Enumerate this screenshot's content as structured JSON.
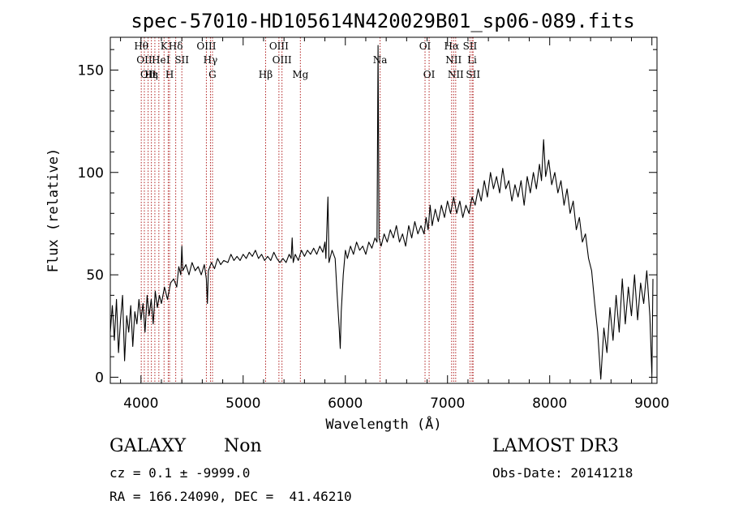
{
  "chart_data": {
    "type": "line",
    "title": "spec-57010-HD105614N420029B01_sp06-089.fits",
    "xlabel": "Wavelength (Å)",
    "ylabel": "Flux (relative)",
    "xlim": [
      3700,
      9050
    ],
    "ylim": [
      -3,
      166
    ],
    "xticks": [
      4000,
      5000,
      6000,
      7000,
      8000,
      9000
    ],
    "yticks": [
      0,
      50,
      100,
      150
    ],
    "grid": false,
    "line_color": "#000000",
    "marker_color": "#b22222",
    "series": [
      {
        "values": [
          [
            3700,
            22
          ],
          [
            3720,
            35
          ],
          [
            3740,
            18
          ],
          [
            3760,
            38
          ],
          [
            3780,
            12
          ],
          [
            3800,
            28
          ],
          [
            3820,
            40
          ],
          [
            3840,
            8
          ],
          [
            3860,
            30
          ],
          [
            3880,
            22
          ],
          [
            3900,
            35
          ],
          [
            3920,
            15
          ],
          [
            3940,
            32
          ],
          [
            3960,
            26
          ],
          [
            3980,
            38
          ],
          [
            4000,
            28
          ],
          [
            4020,
            36
          ],
          [
            4040,
            22
          ],
          [
            4060,
            40
          ],
          [
            4080,
            30
          ],
          [
            4100,
            38
          ],
          [
            4120,
            26
          ],
          [
            4140,
            42
          ],
          [
            4160,
            34
          ],
          [
            4180,
            40
          ],
          [
            4200,
            36
          ],
          [
            4230,
            44
          ],
          [
            4260,
            38
          ],
          [
            4290,
            46
          ],
          [
            4320,
            48
          ],
          [
            4350,
            44
          ],
          [
            4370,
            54
          ],
          [
            4390,
            50
          ],
          [
            4400,
            64
          ],
          [
            4410,
            52
          ],
          [
            4440,
            55
          ],
          [
            4470,
            50
          ],
          [
            4500,
            56
          ],
          [
            4530,
            52
          ],
          [
            4560,
            54
          ],
          [
            4590,
            50
          ],
          [
            4620,
            55
          ],
          [
            4640,
            48
          ],
          [
            4650,
            36
          ],
          [
            4660,
            52
          ],
          [
            4690,
            56
          ],
          [
            4720,
            53
          ],
          [
            4750,
            58
          ],
          [
            4780,
            55
          ],
          [
            4810,
            57
          ],
          [
            4850,
            56
          ],
          [
            4880,
            60
          ],
          [
            4910,
            57
          ],
          [
            4940,
            59
          ],
          [
            4970,
            57
          ],
          [
            5000,
            60
          ],
          [
            5030,
            58
          ],
          [
            5060,
            61
          ],
          [
            5090,
            59
          ],
          [
            5120,
            62
          ],
          [
            5150,
            58
          ],
          [
            5180,
            60
          ],
          [
            5210,
            57
          ],
          [
            5240,
            59
          ],
          [
            5270,
            57
          ],
          [
            5300,
            61
          ],
          [
            5330,
            58
          ],
          [
            5360,
            56
          ],
          [
            5390,
            58
          ],
          [
            5420,
            56
          ],
          [
            5450,
            60
          ],
          [
            5470,
            58
          ],
          [
            5480,
            68
          ],
          [
            5490,
            56
          ],
          [
            5510,
            60
          ],
          [
            5540,
            57
          ],
          [
            5570,
            62
          ],
          [
            5600,
            59
          ],
          [
            5630,
            62
          ],
          [
            5660,
            60
          ],
          [
            5690,
            63
          ],
          [
            5720,
            60
          ],
          [
            5750,
            64
          ],
          [
            5780,
            61
          ],
          [
            5800,
            66
          ],
          [
            5810,
            58
          ],
          [
            5830,
            88
          ],
          [
            5840,
            56
          ],
          [
            5870,
            62
          ],
          [
            5900,
            58
          ],
          [
            5920,
            40
          ],
          [
            5940,
            24
          ],
          [
            5950,
            14
          ],
          [
            5960,
            32
          ],
          [
            5980,
            50
          ],
          [
            6000,
            62
          ],
          [
            6020,
            58
          ],
          [
            6050,
            64
          ],
          [
            6080,
            60
          ],
          [
            6110,
            66
          ],
          [
            6140,
            62
          ],
          [
            6170,
            64
          ],
          [
            6200,
            60
          ],
          [
            6230,
            66
          ],
          [
            6260,
            63
          ],
          [
            6290,
            68
          ],
          [
            6310,
            66
          ],
          [
            6320,
            162
          ],
          [
            6330,
            68
          ],
          [
            6350,
            64
          ],
          [
            6380,
            70
          ],
          [
            6410,
            66
          ],
          [
            6440,
            72
          ],
          [
            6470,
            68
          ],
          [
            6500,
            74
          ],
          [
            6530,
            66
          ],
          [
            6560,
            70
          ],
          [
            6590,
            64
          ],
          [
            6620,
            74
          ],
          [
            6650,
            68
          ],
          [
            6680,
            76
          ],
          [
            6710,
            70
          ],
          [
            6740,
            74
          ],
          [
            6770,
            70
          ],
          [
            6790,
            78
          ],
          [
            6810,
            72
          ],
          [
            6830,
            84
          ],
          [
            6850,
            74
          ],
          [
            6880,
            82
          ],
          [
            6910,
            76
          ],
          [
            6940,
            84
          ],
          [
            6970,
            78
          ],
          [
            7000,
            86
          ],
          [
            7030,
            80
          ],
          [
            7060,
            88
          ],
          [
            7090,
            80
          ],
          [
            7120,
            86
          ],
          [
            7150,
            78
          ],
          [
            7180,
            84
          ],
          [
            7210,
            80
          ],
          [
            7240,
            88
          ],
          [
            7270,
            84
          ],
          [
            7300,
            92
          ],
          [
            7330,
            86
          ],
          [
            7360,
            96
          ],
          [
            7390,
            88
          ],
          [
            7420,
            100
          ],
          [
            7450,
            92
          ],
          [
            7480,
            98
          ],
          [
            7510,
            90
          ],
          [
            7540,
            102
          ],
          [
            7570,
            92
          ],
          [
            7600,
            96
          ],
          [
            7630,
            86
          ],
          [
            7660,
            94
          ],
          [
            7690,
            88
          ],
          [
            7720,
            96
          ],
          [
            7750,
            84
          ],
          [
            7780,
            98
          ],
          [
            7810,
            90
          ],
          [
            7840,
            100
          ],
          [
            7870,
            92
          ],
          [
            7900,
            104
          ],
          [
            7920,
            96
          ],
          [
            7940,
            116
          ],
          [
            7960,
            98
          ],
          [
            7990,
            106
          ],
          [
            8020,
            94
          ],
          [
            8050,
            100
          ],
          [
            8080,
            90
          ],
          [
            8110,
            96
          ],
          [
            8140,
            84
          ],
          [
            8170,
            92
          ],
          [
            8200,
            80
          ],
          [
            8230,
            86
          ],
          [
            8260,
            72
          ],
          [
            8290,
            78
          ],
          [
            8320,
            66
          ],
          [
            8350,
            70
          ],
          [
            8380,
            58
          ],
          [
            8410,
            52
          ],
          [
            8440,
            36
          ],
          [
            8470,
            22
          ],
          [
            8500,
            -1
          ],
          [
            8530,
            24
          ],
          [
            8560,
            12
          ],
          [
            8590,
            34
          ],
          [
            8620,
            18
          ],
          [
            8650,
            40
          ],
          [
            8680,
            22
          ],
          [
            8710,
            48
          ],
          [
            8740,
            26
          ],
          [
            8770,
            44
          ],
          [
            8800,
            30
          ],
          [
            8830,
            50
          ],
          [
            8860,
            28
          ],
          [
            8890,
            46
          ],
          [
            8920,
            36
          ],
          [
            8950,
            52
          ],
          [
            8980,
            30
          ],
          [
            9000,
            1
          ],
          [
            9010,
            48
          ]
        ]
      }
    ],
    "lines": [
      {
        "wave": 4003,
        "label": "Hθ",
        "row": 1
      },
      {
        "wave": 4033,
        "label": "OII",
        "row": 2
      },
      {
        "wave": 4070,
        "label": "OII",
        "row": 3
      },
      {
        "wave": 4102,
        "label": "Hε",
        "row": 3
      },
      {
        "wave": 4136,
        "label": "η",
        "row": 3
      },
      {
        "wave": 4175,
        "label": "He",
        "row": 2
      },
      {
        "wave": 4226,
        "label": "K",
        "row": 1
      },
      {
        "wave": 4267,
        "label": "I",
        "row": 2
      },
      {
        "wave": 4280,
        "label": "H",
        "row": 3
      },
      {
        "wave": 4340,
        "label": "Hδ",
        "row": 1
      },
      {
        "wave": 4400,
        "label": "SII",
        "row": 2
      },
      {
        "wave": 4640,
        "label": "OIII",
        "row": 1
      },
      {
        "wave": 4680,
        "label": "Hγ",
        "row": 2
      },
      {
        "wave": 4700,
        "label": "G",
        "row": 3
      },
      {
        "wave": 5220,
        "label": "Hβ",
        "row": 3
      },
      {
        "wave": 5350,
        "label": "OIII",
        "row": 1
      },
      {
        "wave": 5380,
        "label": "OIII",
        "row": 2
      },
      {
        "wave": 5560,
        "label": "Mg",
        "row": 3
      },
      {
        "wave": 6340,
        "label": "Na",
        "row": 2
      },
      {
        "wave": 6780,
        "label": "OI",
        "row": 1
      },
      {
        "wave": 6820,
        "label": "OI",
        "row": 3
      },
      {
        "wave": 7040,
        "label": "Hα",
        "row": 1
      },
      {
        "wave": 7060,
        "label": "NII",
        "row": 2
      },
      {
        "wave": 7080,
        "label": "NII",
        "row": 3
      },
      {
        "wave": 7220,
        "label": "SII",
        "row": 1
      },
      {
        "wave": 7240,
        "label": "Li",
        "row": 2
      },
      {
        "wave": 7250,
        "label": "SII",
        "row": 3
      }
    ]
  },
  "info": {
    "class": "GALAXY",
    "subclass": "Non",
    "cz": "cz = 0.1 ± -9999.0",
    "coords": "RA = 166.24090, DEC =  41.46210",
    "survey": "LAMOST DR3",
    "obsdate": "Obs-Date: 20141218"
  }
}
